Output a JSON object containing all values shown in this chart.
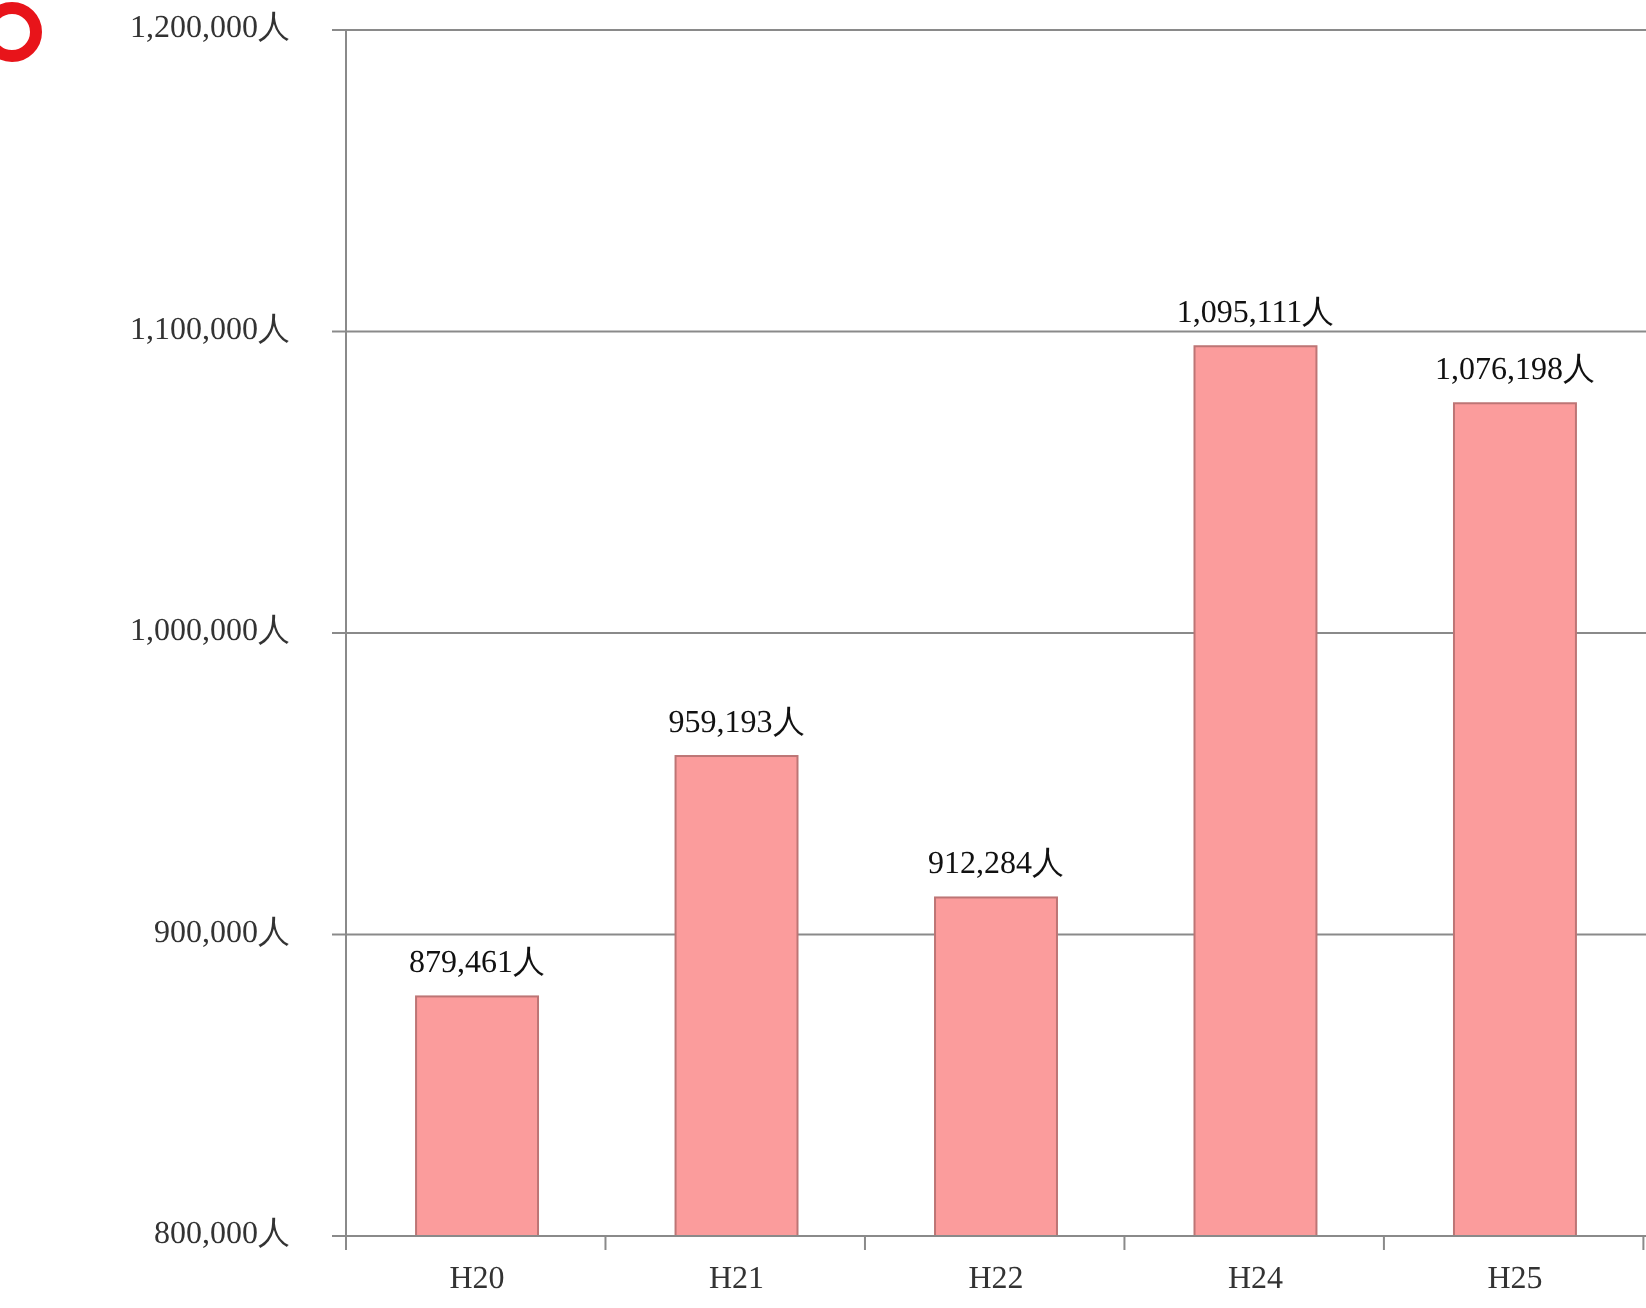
{
  "chart_data": {
    "type": "bar",
    "categories": [
      "H20",
      "H21",
      "H22",
      "H24",
      "H25"
    ],
    "values": [
      879461,
      959193,
      912284,
      1095111,
      1076198
    ],
    "value_labels": [
      "879,461人",
      "959,193人",
      "912,284人",
      "1,095,111人",
      "1,076,198人"
    ],
    "color": "#fb9c9c",
    "ylim": [
      800000,
      1200000
    ],
    "yticks": [
      {
        "value": 800000,
        "label": "800,000人"
      },
      {
        "value": 900000,
        "label": "900,000人"
      },
      {
        "value": 1000000,
        "label": "1,000,000人"
      },
      {
        "value": 1100000,
        "label": "1,100,000人"
      },
      {
        "value": 1200000,
        "label": "1,200,000人"
      }
    ],
    "grid": "y"
  }
}
